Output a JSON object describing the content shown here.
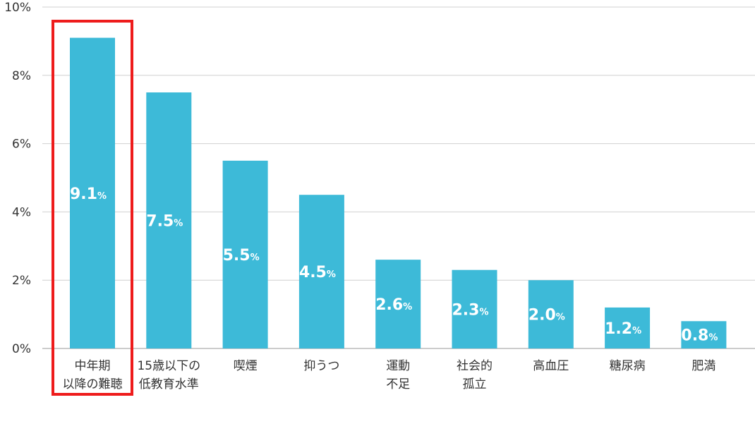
{
  "chart_data": {
    "type": "bar",
    "title": "",
    "xlabel": "",
    "ylabel": "",
    "ylim": [
      0,
      10
    ],
    "yticks": [
      0,
      2,
      4,
      6,
      8,
      10
    ],
    "ytick_labels": [
      "0%",
      "2%",
      "4%",
      "6%",
      "8%",
      "10%"
    ],
    "grid": true,
    "categories": [
      [
        "中年期",
        "以降の難聴"
      ],
      [
        "15歳以下の",
        "低教育水準"
      ],
      [
        "喫煙"
      ],
      [
        "抑うつ"
      ],
      [
        "運動",
        "不足"
      ],
      [
        "社会的",
        "孤立"
      ],
      [
        "高血圧"
      ],
      [
        "糖尿病"
      ],
      [
        "肥満"
      ]
    ],
    "values": [
      9.1,
      7.5,
      5.5,
      4.5,
      2.6,
      2.3,
      2.0,
      1.2,
      0.8
    ],
    "value_labels": [
      "9.1",
      "7.5",
      "5.5",
      "4.5",
      "2.6",
      "2.3",
      "2.0",
      "1.2",
      "0.8"
    ],
    "value_suffix": "%",
    "highlighted_index": 0,
    "colors": {
      "bar": "#3dbad8",
      "highlight": "#ee1c1c",
      "grid": "#d0d0d0"
    }
  }
}
